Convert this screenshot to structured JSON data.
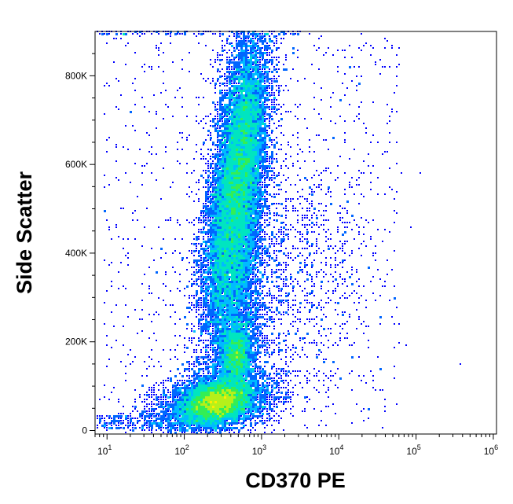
{
  "chart_data": {
    "type": "scatter",
    "subtype": "flow-cytometry-density-dot-plot",
    "xlabel": "CD370 PE",
    "ylabel": "Side Scatter",
    "x_scale": "log",
    "xlim": [
      7,
      1100000
    ],
    "ylim": [
      -8000,
      900000
    ],
    "x_ticks": [
      {
        "base": "10",
        "exp": "1",
        "value": 10
      },
      {
        "base": "10",
        "exp": "2",
        "value": 100
      },
      {
        "base": "10",
        "exp": "3",
        "value": 1000
      },
      {
        "base": "10",
        "exp": "4",
        "value": 10000
      },
      {
        "base": "10",
        "exp": "5",
        "value": 100000
      },
      {
        "base": "10",
        "exp": "6",
        "value": 1000000
      }
    ],
    "y_ticks": [
      {
        "label": "0",
        "value": 0
      },
      {
        "label": "200K",
        "value": 200000
      },
      {
        "label": "400K",
        "value": 400000
      },
      {
        "label": "600K",
        "value": 600000
      },
      {
        "label": "800K",
        "value": 800000
      }
    ],
    "density_colors": [
      "#0000ff",
      "#0066ff",
      "#00bbff",
      "#00e5c0",
      "#33ee55",
      "#b5f01a",
      "#ffee00",
      "#ff9900",
      "#ff3300",
      "#dd0000"
    ],
    "populations": [
      {
        "name_internal": "A",
        "center_x": 270,
        "center_y": 65000,
        "density": "highest"
      },
      {
        "name_internal": "B",
        "center_x": 480,
        "center_y": 170000,
        "density": "medium"
      },
      {
        "name_internal": "C",
        "center_x": 460,
        "center_y": 520000,
        "density": "high"
      },
      {
        "name_internal": "D",
        "center_x": 3000,
        "center_y": 380000,
        "density": "sparse"
      }
    ],
    "grid": false,
    "legend": "none"
  }
}
